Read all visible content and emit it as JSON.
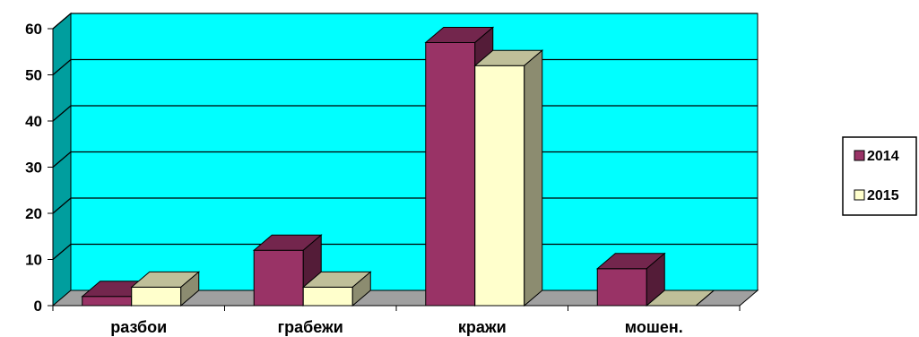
{
  "chart_data": {
    "type": "bar",
    "categories": [
      "разбои",
      "грабежи",
      "кражи",
      "мошен."
    ],
    "series": [
      {
        "name": "2014",
        "values": [
          2,
          12,
          57,
          8
        ],
        "color": "#993366"
      },
      {
        "name": "2015",
        "values": [
          4,
          4,
          52,
          0
        ],
        "color": "#ffffcc"
      }
    ],
    "yticks": [
      "0",
      "10",
      "20",
      "30",
      "40",
      "50",
      "60"
    ],
    "ylim": [
      0,
      60
    ],
    "grid": true,
    "legend": "right",
    "wall_color": "#00ffff",
    "floor_color": "#a0a0a0",
    "title": "",
    "xlabel": "",
    "ylabel": ""
  }
}
